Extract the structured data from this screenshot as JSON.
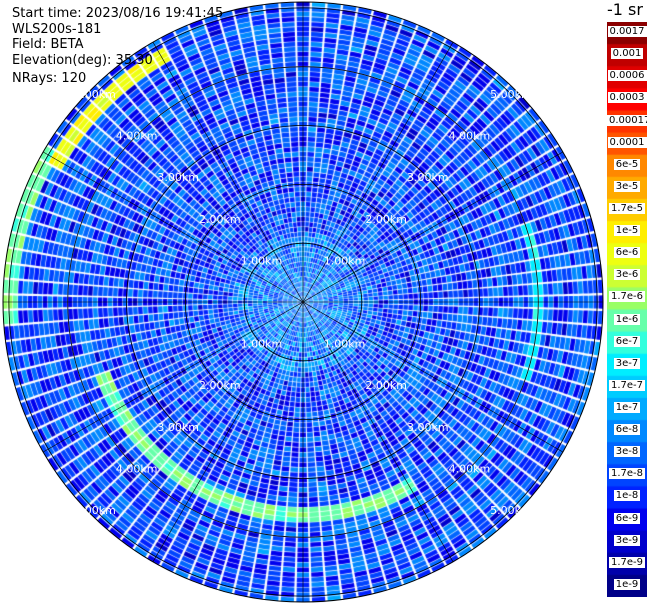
{
  "header": {
    "start_time": "Start time: 2023/08/16 19:41:45",
    "device": "WLS200s-181",
    "field": "Field: BETA",
    "elevation": "Elevation(deg): 35.30",
    "nrays": "NRays: 120"
  },
  "colorbar": {
    "unit_label": "-1 sr",
    "labels": [
      "0.0017",
      "0.001",
      "0.0006",
      "0.0003",
      "0.00017",
      "0.0001",
      "6e-5",
      "3e-5",
      "1.7e-5",
      "1e-5",
      "6e-6",
      "3e-6",
      "1.7e-6",
      "1e-6",
      "6e-7",
      "3e-7",
      "1.7e-7",
      "1e-7",
      "6e-8",
      "3e-8",
      "1.7e-8",
      "1e-8",
      "6e-9",
      "3e-9",
      "1.7e-9",
      "1e-9"
    ],
    "colors": [
      "#8b0000",
      "#c00000",
      "#e00000",
      "#ff0000",
      "#ff3300",
      "#ff5500",
      "#ff8800",
      "#ffaa00",
      "#ffcc00",
      "#ffee00",
      "#eeff11",
      "#ccff33",
      "#99ff66",
      "#66ffaa",
      "#33ffdd",
      "#00eeff",
      "#00ccff",
      "#00aaff",
      "#0088ff",
      "#0066ff",
      "#0044ff",
      "#0022ff",
      "#0000ee",
      "#0000cc",
      "#0000aa",
      "#000088"
    ]
  },
  "chart_data": {
    "type": "heatmap",
    "projection": "polar (plan position indicator)",
    "field": "BETA",
    "elevation_deg": 35.3,
    "n_rays": 120,
    "range_rings_km": [
      1,
      2,
      3,
      4,
      5
    ],
    "range_labels": [
      "1.00km",
      "2.00km",
      "3.00km",
      "4.00km",
      "5.00km"
    ],
    "scale": "log",
    "color_range": [
      1e-09,
      0.0017
    ],
    "typical_value": 1.7e-08,
    "features": [
      {
        "description": "enhanced backscatter arc",
        "range_km": 3.6,
        "azimuth_deg": [
          150,
          250
        ],
        "value": 1e-06
      },
      {
        "description": "enhanced backscatter arc",
        "range_km": 4.0,
        "azimuth_deg": [
          70,
          110
        ],
        "value": 3e-07
      },
      {
        "description": "enhanced backscatter segment",
        "range_km": 5.0,
        "azimuth_deg": [
          265,
          300
        ],
        "value": 1e-06
      },
      {
        "description": "enhanced backscatter segment",
        "range_km": 4.8,
        "azimuth_deg": [
          300,
          330
        ],
        "value": 6e-06
      }
    ]
  }
}
